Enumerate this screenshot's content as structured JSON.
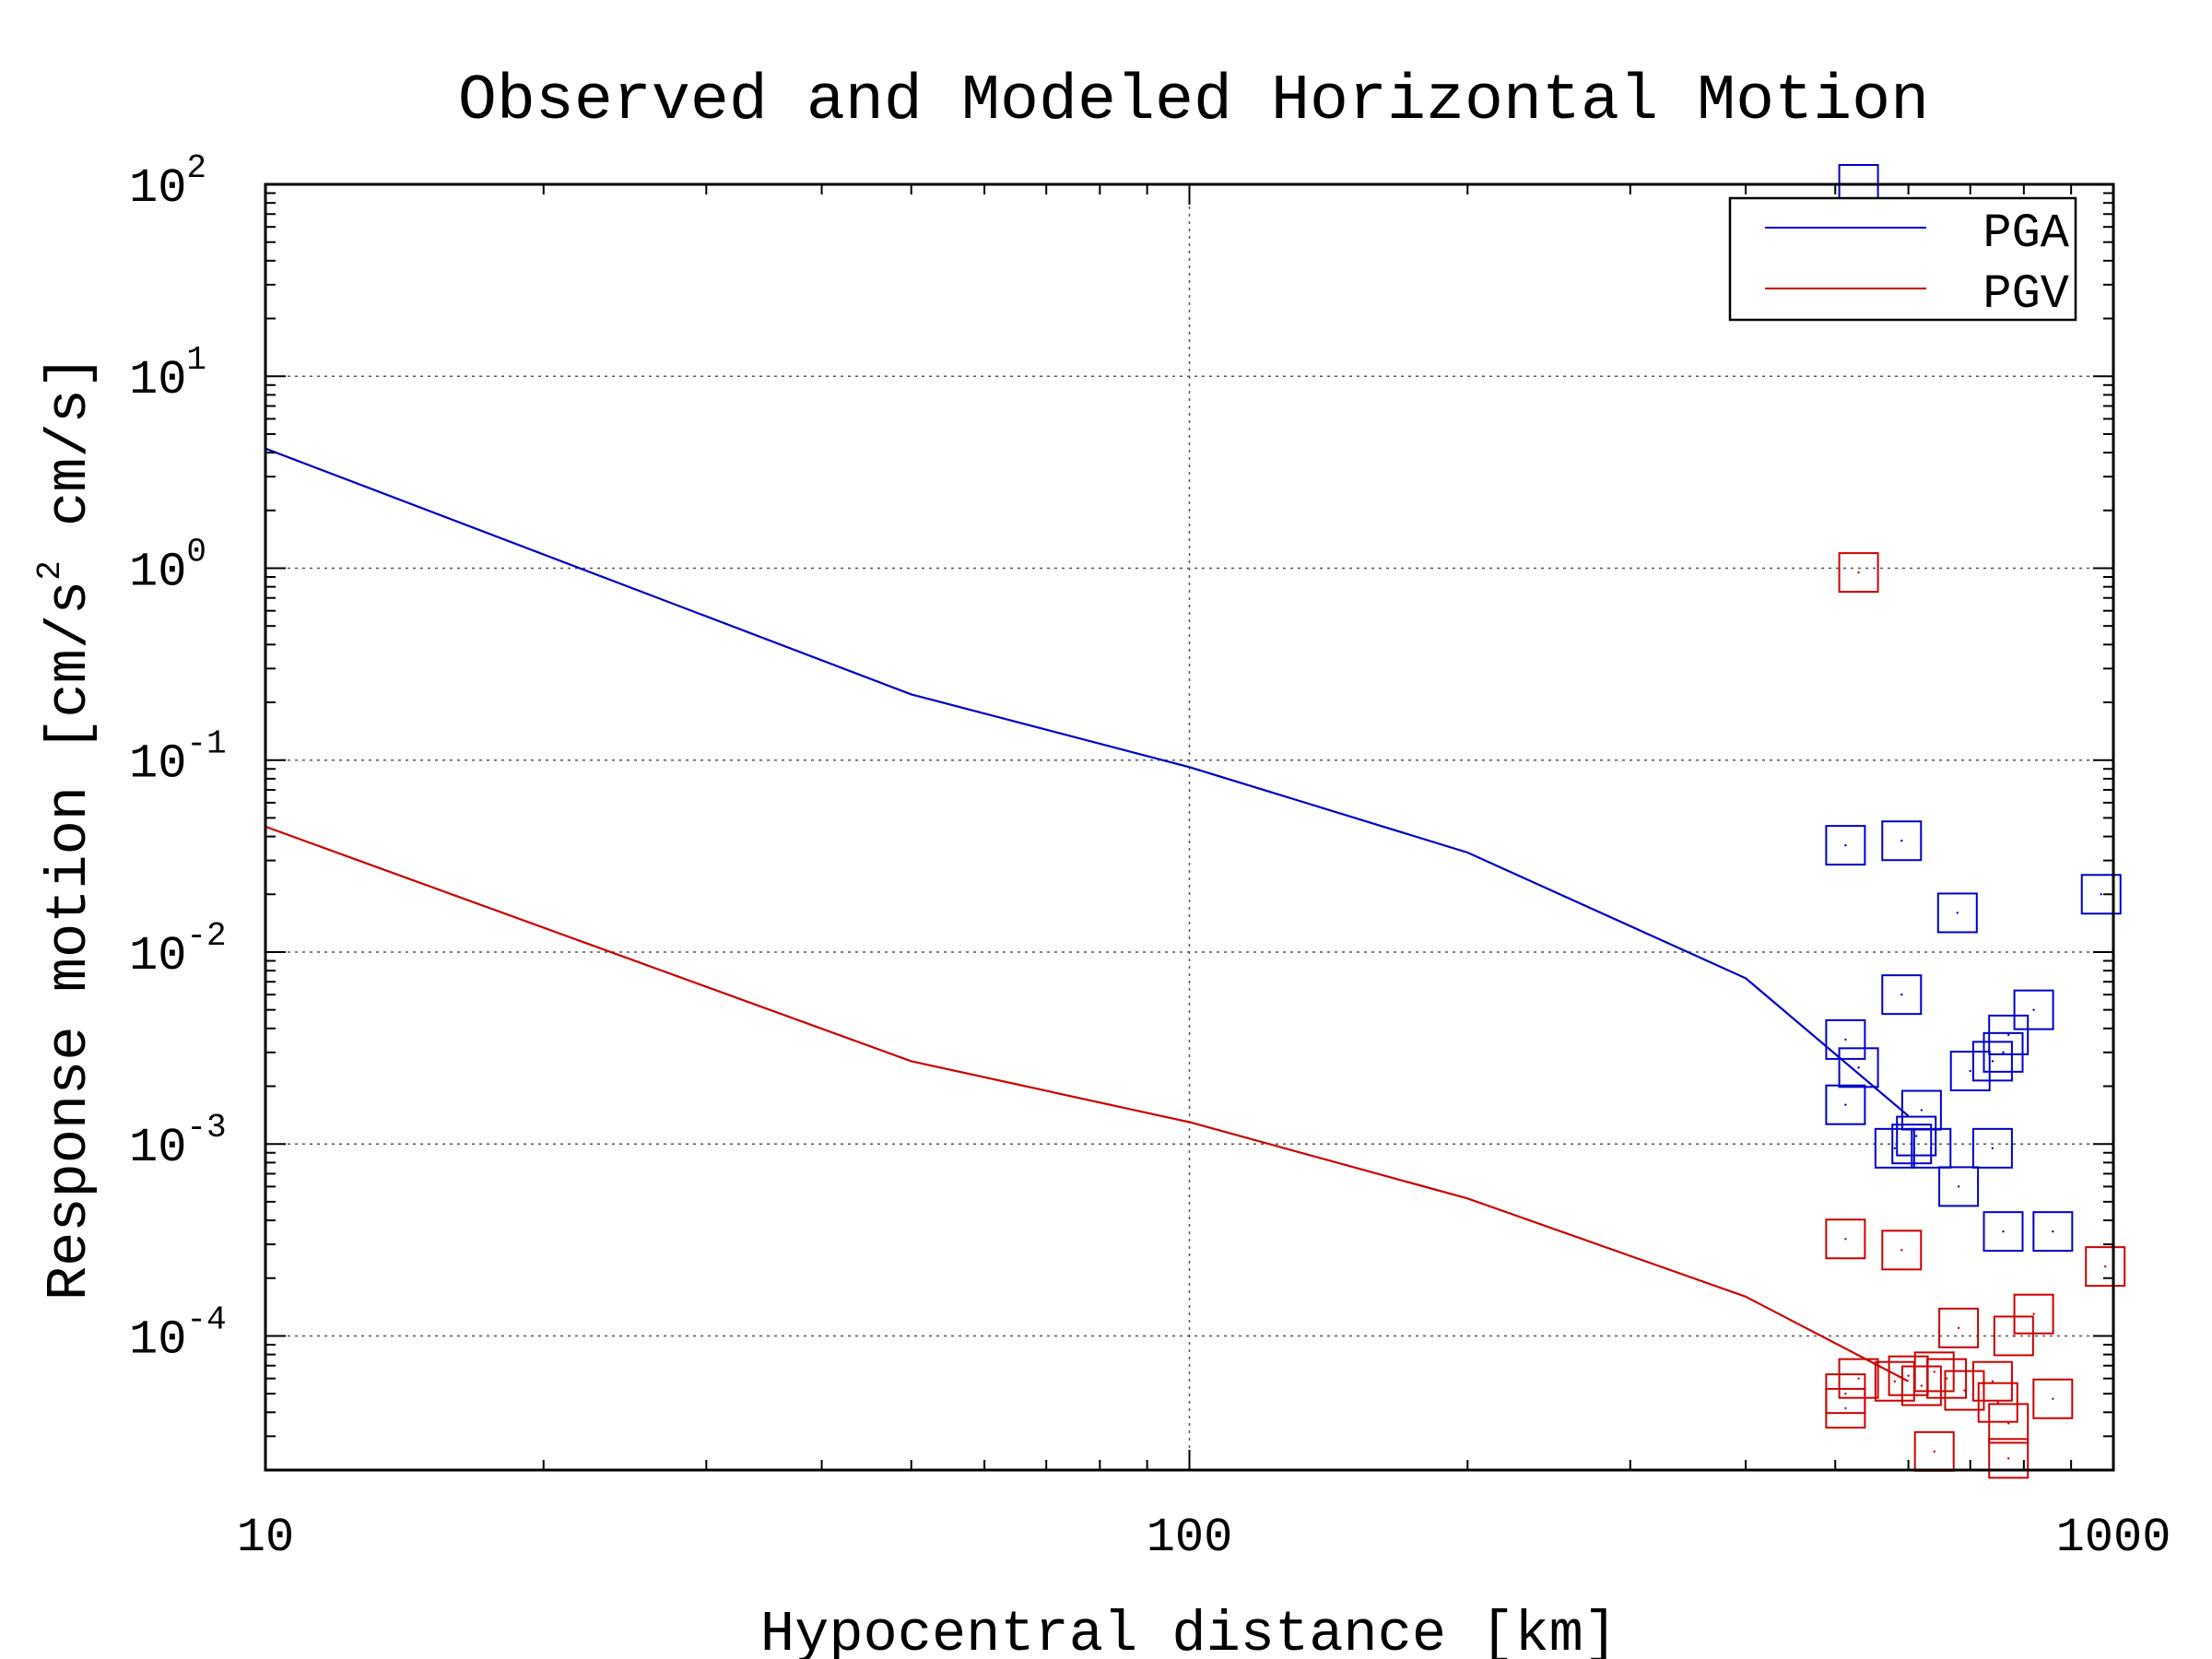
{
  "chart_data": {
    "type": "scatter",
    "title": "Observed and Modeled Horizontal Motion",
    "xlabel": "Hypocentral distance [km]",
    "ylabel": "Response motion [cm/s² cm/s]",
    "ylabel_parts": {
      "pre": "Response motion [cm/s",
      "sup": "2",
      "post": " cm/s]"
    },
    "x_scale": "log",
    "y_scale": "log",
    "xlim": [
      10,
      1000
    ],
    "ylim": [
      2e-05,
      100
    ],
    "x_ticks": [
      {
        "value": 10,
        "label": "10"
      },
      {
        "value": 100,
        "label": "100"
      },
      {
        "value": 1000,
        "label": "1000"
      }
    ],
    "y_ticks": [
      {
        "value": 100,
        "base": "10",
        "exp": "2"
      },
      {
        "value": 10,
        "base": "10",
        "exp": "1"
      },
      {
        "value": 1,
        "base": "10",
        "exp": "0"
      },
      {
        "value": 0.1,
        "base": "10",
        "exp": "-1"
      },
      {
        "value": 0.01,
        "base": "10",
        "exp": "-2"
      },
      {
        "value": 0.001,
        "base": "10",
        "exp": "-3"
      },
      {
        "value": 0.0001,
        "base": "10",
        "exp": "-4"
      }
    ],
    "grid": true,
    "legend_position": "top-right",
    "series": [
      {
        "name": "PGA",
        "color": "#0000cc",
        "model_line": [
          [
            10,
            4.2
          ],
          [
            50,
            0.22
          ],
          [
            100,
            0.092
          ],
          [
            200,
            0.033
          ],
          [
            400,
            0.0073
          ],
          [
            600,
            0.0014
          ]
        ],
        "observed": [
          [
            530,
            100
          ],
          [
            513,
            0.036
          ],
          [
            590,
            0.038
          ],
          [
            678,
            0.016
          ],
          [
            970,
            0.02
          ],
          [
            590,
            0.006
          ],
          [
            513,
            0.0035
          ],
          [
            530,
            0.0025
          ],
          [
            513,
            0.0016
          ],
          [
            620,
            0.0015
          ],
          [
            612,
            0.0011
          ],
          [
            605,
            0.001
          ],
          [
            580,
            0.00095
          ],
          [
            635,
            0.00095
          ],
          [
            700,
            0.0024
          ],
          [
            740,
            0.0027
          ],
          [
            760,
            0.003
          ],
          [
            770,
            0.0037
          ],
          [
            820,
            0.005
          ],
          [
            740,
            0.00095
          ],
          [
            680,
            0.0006
          ],
          [
            760,
            0.00035
          ],
          [
            860,
            0.00035
          ]
        ]
      },
      {
        "name": "PGV",
        "color": "#cc0000",
        "model_line": [
          [
            10,
            0.045
          ],
          [
            50,
            0.0027
          ],
          [
            100,
            0.0013
          ],
          [
            200,
            0.00052
          ],
          [
            400,
            0.00016
          ],
          [
            600,
            5.8e-05
          ]
        ],
        "observed": [
          [
            530,
            0.95
          ],
          [
            513,
            0.00032
          ],
          [
            590,
            0.00028
          ],
          [
            980,
            0.00023
          ],
          [
            820,
            0.00013
          ],
          [
            680,
            0.00011
          ],
          [
            780,
            0.0001
          ],
          [
            530,
            6e-05
          ],
          [
            513,
            5e-05
          ],
          [
            513,
            4.2e-05
          ],
          [
            580,
            5.8e-05
          ],
          [
            600,
            6.2e-05
          ],
          [
            620,
            5.5e-05
          ],
          [
            640,
            6.5e-05
          ],
          [
            660,
            6e-05
          ],
          [
            690,
            5.2e-05
          ],
          [
            740,
            5.8e-05
          ],
          [
            750,
            4.5e-05
          ],
          [
            770,
            3.5e-05
          ],
          [
            860,
            4.7e-05
          ],
          [
            640,
            2.5e-05
          ],
          [
            770,
            2.3e-05
          ]
        ]
      }
    ]
  }
}
